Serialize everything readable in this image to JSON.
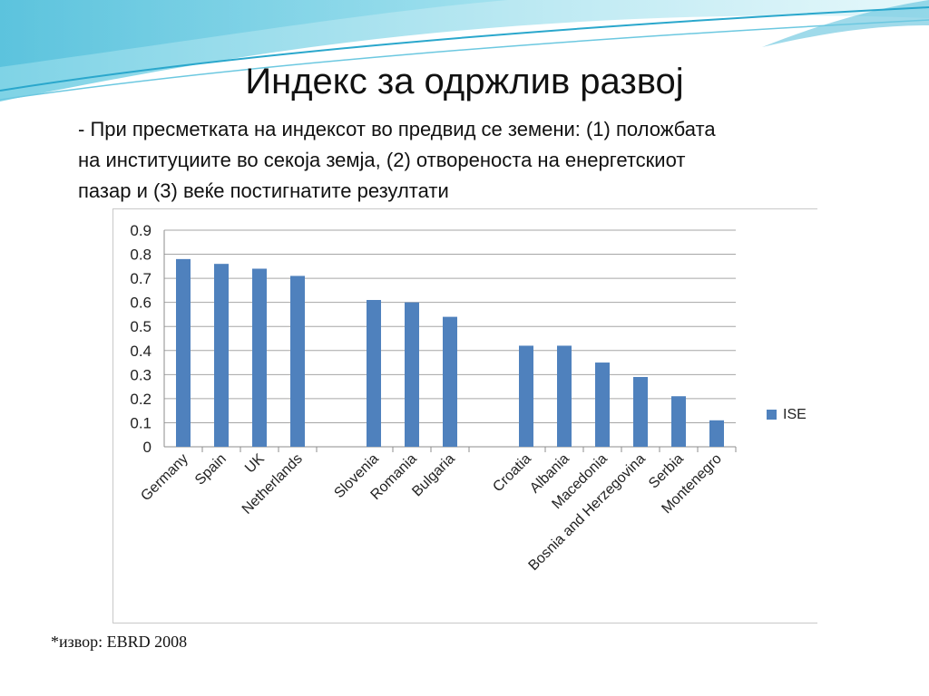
{
  "slide": {
    "title": "Индекс за одржлив развој",
    "body_lines": [
      "- При пресметката на индексот во предвид се земени: (1) положбата",
      "на институциите во секоја земја, (2) отвореноста на енергетскиот",
      "пазар и (3) веќе постигнатите резултати"
    ],
    "source": "*извор: EBRD 2008"
  },
  "chart_data": {
    "type": "bar",
    "categories": [
      "Germany",
      "Spain",
      "UK",
      "Netherlands",
      "Slovenia",
      "Romania",
      "Bulgaria",
      "Croatia",
      "Albania",
      "Macedonia",
      "Bosnia and Herzegovina",
      "Serbia",
      "Montenegro"
    ],
    "groups": [
      [
        0,
        1,
        2,
        3
      ],
      [
        4,
        5,
        6
      ],
      [
        7,
        8,
        9,
        10,
        11,
        12
      ]
    ],
    "series": [
      {
        "name": "ISE",
        "values": [
          0.78,
          0.76,
          0.74,
          0.71,
          0.61,
          0.6,
          0.54,
          0.42,
          0.42,
          0.35,
          0.29,
          0.21,
          0.11
        ],
        "color": "#4f81bd"
      }
    ],
    "ylim": [
      0,
      0.9
    ],
    "yticks": [
      "0",
      "0.1",
      "0.2",
      "0.3",
      "0.4",
      "0.5",
      "0.6",
      "0.7",
      "0.8",
      "0.9"
    ],
    "grid": true,
    "legend": "right",
    "xlabel": "",
    "ylabel": ""
  }
}
